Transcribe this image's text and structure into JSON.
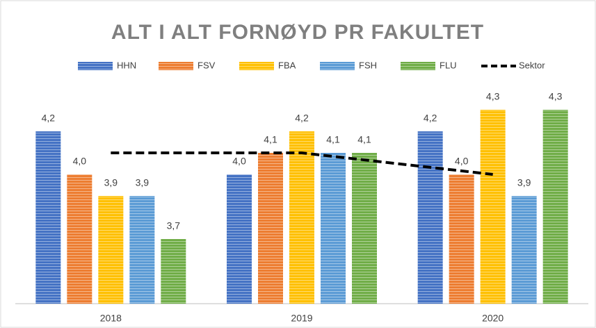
{
  "chart_data": {
    "type": "bar",
    "title": "ALT I ALT FORNØYD PR FAKULTET",
    "categories": [
      "2018",
      "2019",
      "2020"
    ],
    "ylim": [
      3.4,
      4.5
    ],
    "series": [
      {
        "name": "HHN",
        "color": "#4472c4",
        "values": [
          4.2,
          4.0,
          4.2
        ],
        "value_labels": [
          "4,2",
          "4,0",
          "4,2"
        ]
      },
      {
        "name": "FSV",
        "color": "#ed7d31",
        "values": [
          4.0,
          4.1,
          4.0
        ],
        "value_labels": [
          "4,0",
          "4,1",
          "4,0"
        ]
      },
      {
        "name": "FBA",
        "color": "#ffc000",
        "values": [
          3.9,
          4.2,
          4.3
        ],
        "value_labels": [
          "3,9",
          "4,2",
          "4,3"
        ]
      },
      {
        "name": "FSH",
        "color": "#5b9bd5",
        "values": [
          3.9,
          4.1,
          3.9
        ],
        "value_labels": [
          "3,9",
          "4,1",
          "3,9"
        ]
      },
      {
        "name": "FLU",
        "color": "#70ad47",
        "values": [
          3.7,
          4.1,
          4.3
        ],
        "value_labels": [
          "3,7",
          "4,1",
          "4,3"
        ]
      },
      {
        "name": "Sektor",
        "type": "line",
        "color": "#000000",
        "values": [
          4.1,
          4.1,
          4.0
        ]
      }
    ],
    "legend": "top"
  }
}
